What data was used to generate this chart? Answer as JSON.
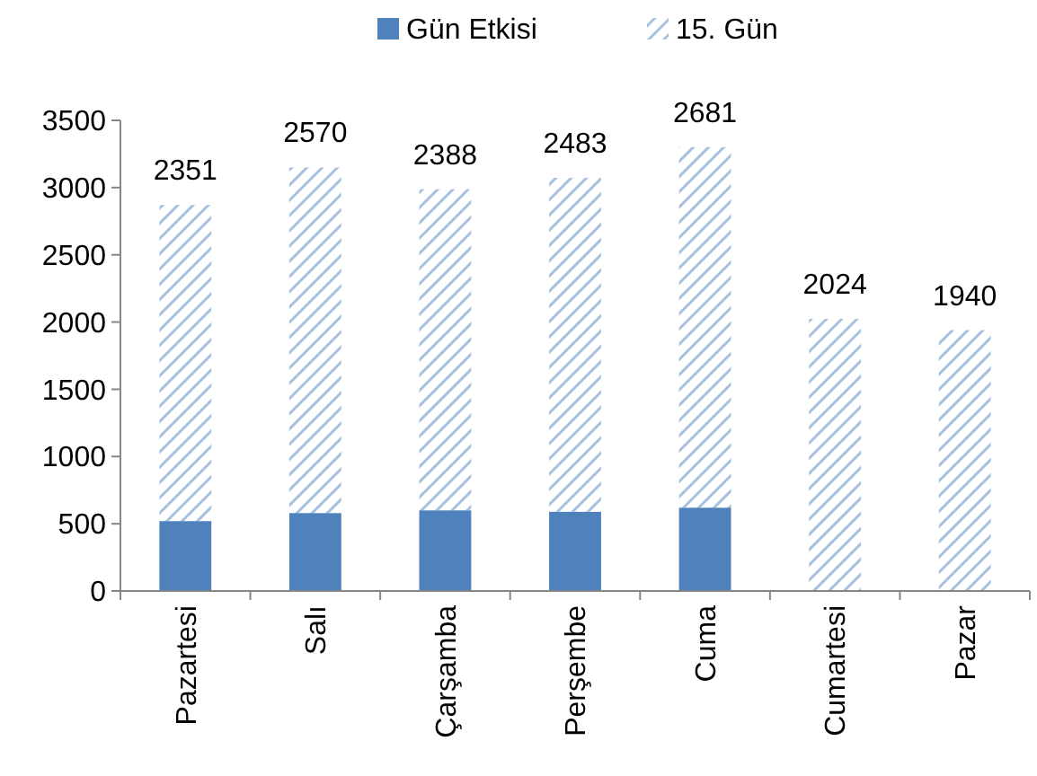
{
  "chart_data": {
    "type": "bar",
    "stacked": true,
    "categories": [
      "Pazartesi",
      "Salı",
      "Çarşamba",
      "Perşembe",
      "Cuma",
      "Cumartesi",
      "Pazar"
    ],
    "series": [
      {
        "name": "Gün Etkisi",
        "color": "#4f81bd",
        "values": [
          520,
          580,
          600,
          590,
          620,
          0,
          0
        ]
      },
      {
        "name": "15. Gün",
        "color": "#a7c0e0",
        "values": [
          2351,
          2570,
          2388,
          2483,
          2681,
          2024,
          1940
        ],
        "value_labels": [
          "2351",
          "2570",
          "2388",
          "2483",
          "2681",
          "2024",
          "1940"
        ]
      }
    ],
    "ylim": [
      0,
      3500
    ],
    "yticks": [
      0,
      500,
      1000,
      1500,
      2000,
      2500,
      3000,
      3500
    ],
    "grid": false,
    "legend": "top"
  }
}
